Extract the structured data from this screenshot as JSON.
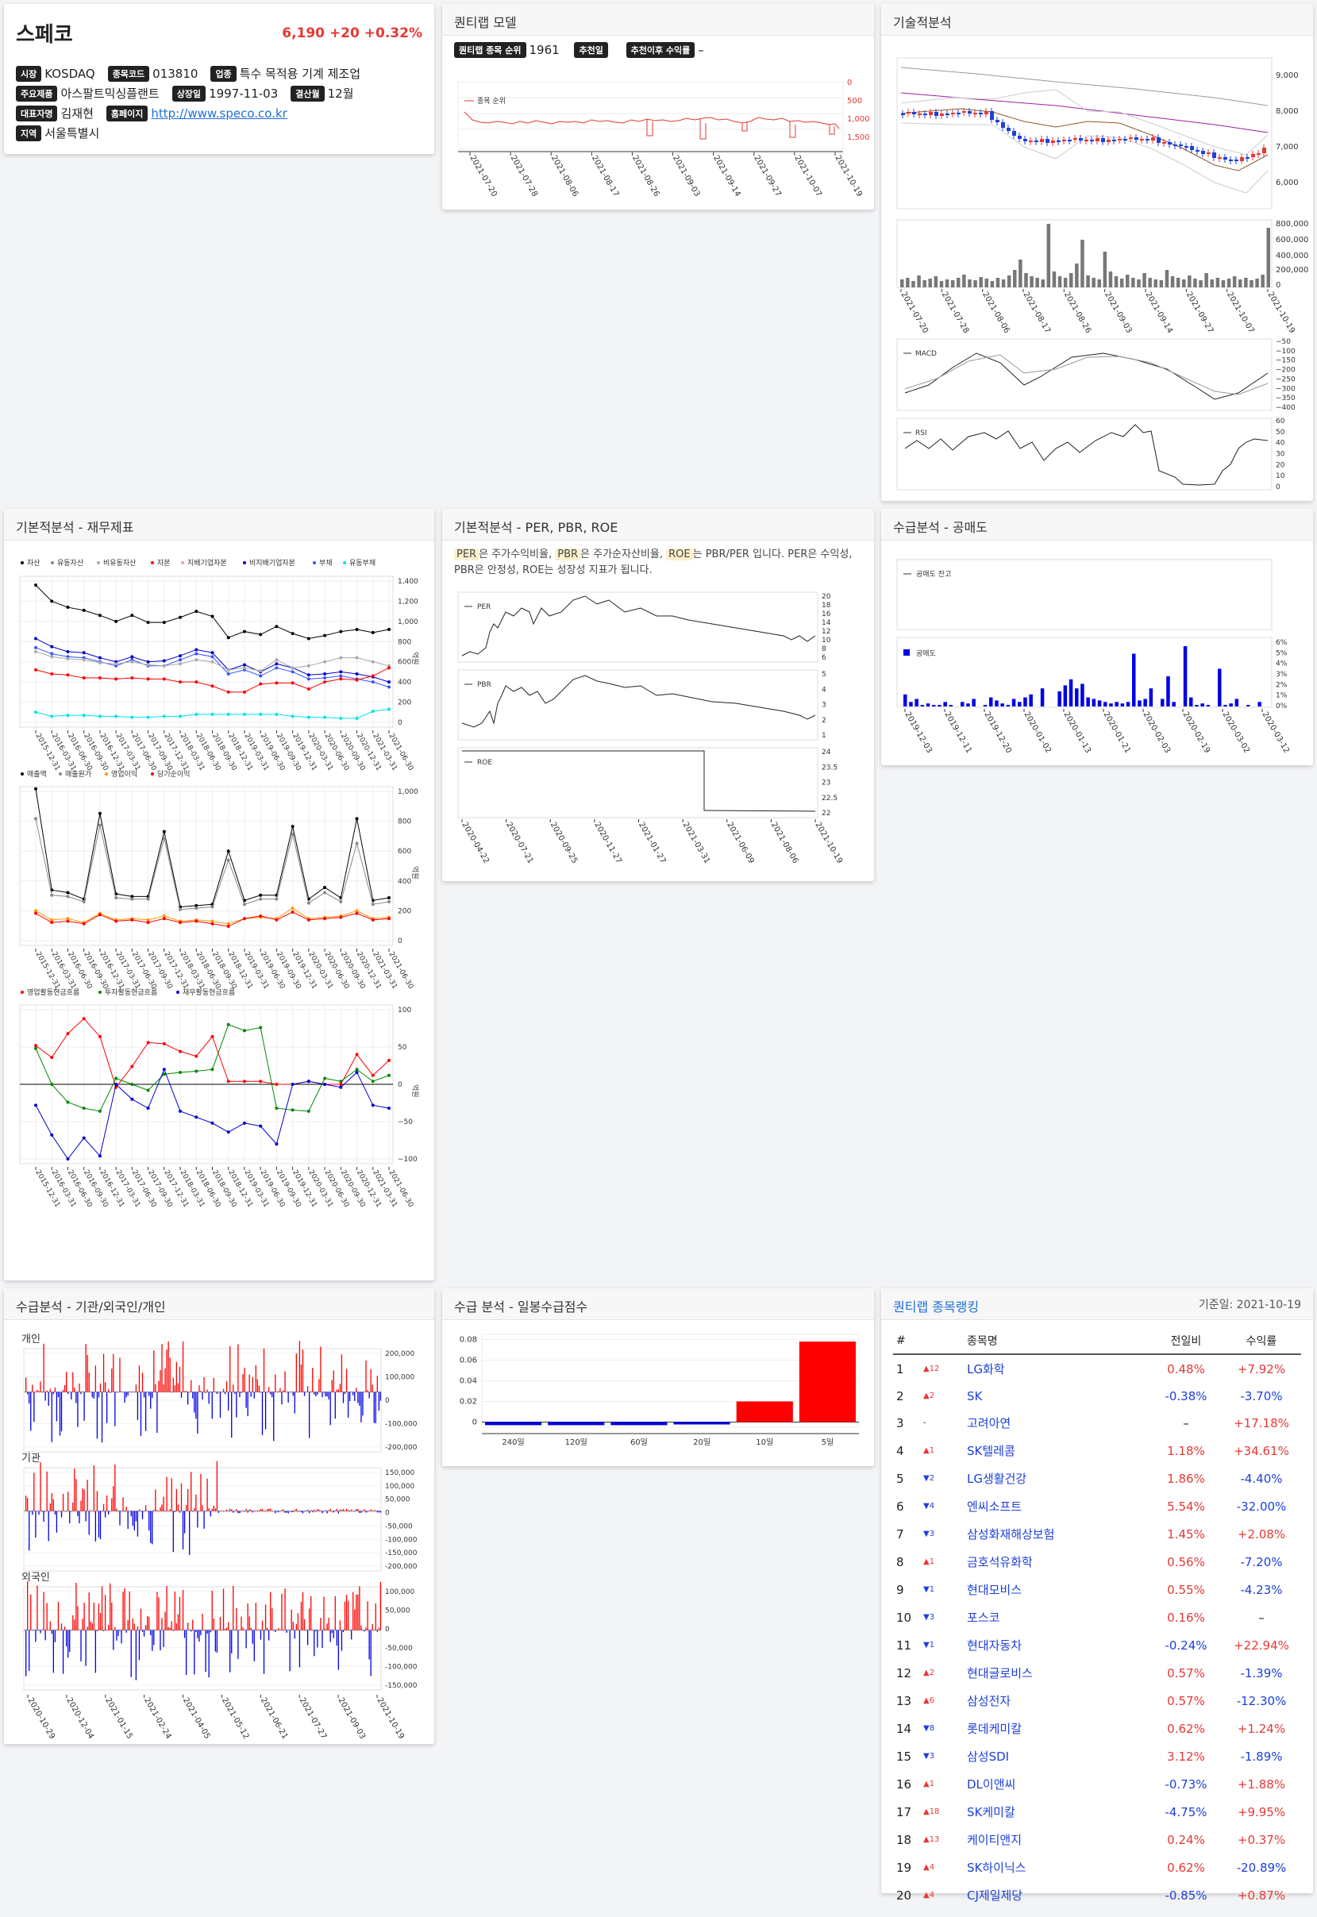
{
  "stock": {
    "name": "스페코",
    "price": "6,190",
    "change": "+20",
    "change_pct": "+0.32%",
    "market_label": "시장",
    "market": "KOSDAQ",
    "code_label": "종목코드",
    "code": "013810",
    "industry_label": "업종",
    "industry": "특수 목적용 기계 제조업",
    "products_label": "주요제품",
    "products": "아스팔트믹싱플랜트",
    "listed_label": "상장일",
    "listed": "1997-11-03",
    "fiscal_label": "결산월",
    "fiscal": "12월",
    "ceo_label": "대표자명",
    "ceo": "김재현",
    "homepage_label": "홈페이지",
    "homepage": "http://www.speco.co.kr",
    "region_label": "지역",
    "region": "서울특별시"
  },
  "quant": {
    "title": "퀀티랩 모델",
    "rank_label": "퀀티랩 종목 순위",
    "rank": "1961",
    "rec_label": "추천일",
    "rec": "",
    "ret_label": "추천이후 수익률",
    "ret": "–",
    "legend": "종목 순위",
    "yticks": [
      "0",
      "500",
      "1,000",
      "1,500"
    ],
    "dates": [
      "2021-07-20",
      "2021-07-28",
      "2021-08-06",
      "2021-08-17",
      "2021-08-26",
      "2021-09-03",
      "2021-09-14",
      "2021-09-27",
      "2021-10-07",
      "2021-10-19"
    ]
  },
  "tech": {
    "title": "기술적분석",
    "price_ticks": [
      "9,000",
      "8,000",
      "7,000",
      "6,000"
    ],
    "vol_ticks": [
      "800,000",
      "600,000",
      "400,000",
      "200,000",
      "0"
    ],
    "macd_label": "MACD",
    "macd_ticks": [
      "−50",
      "−100",
      "−150",
      "−200",
      "−250",
      "−300",
      "−350",
      "−400"
    ],
    "rsi_label": "RSI",
    "rsi_ticks": [
      "60",
      "50",
      "40",
      "30",
      "20",
      "10",
      "0"
    ],
    "dates": [
      "2021-07-20",
      "2021-07-28",
      "2021-08-06",
      "2021-08-17",
      "2021-08-26",
      "2021-09-03",
      "2021-09-14",
      "2021-09-27",
      "2021-10-07",
      "2021-10-19"
    ]
  },
  "fund": {
    "title": "기본적분석 - 재무제표",
    "legend1": [
      "자산",
      "유동자산",
      "비유동자산",
      "자본",
      "지배기업자본",
      "비지배기업자본",
      "부채",
      "유동부채"
    ],
    "legend1_colors": [
      "#000000",
      "#888888",
      "#aaaaaa",
      "#ff0000",
      "#ff9999",
      "#0000cc",
      "#3355ff",
      "#00e5e5"
    ],
    "ticks1": [
      "1,400",
      "1,200",
      "1,000",
      "800",
      "600",
      "400",
      "200",
      "0"
    ],
    "legend2": [
      "매출액",
      "매출원가",
      "영업이익",
      "당기순이익"
    ],
    "legend2_colors": [
      "#000000",
      "#888888",
      "#ff9900",
      "#ff0000"
    ],
    "ticks2": [
      "1,000",
      "800",
      "600",
      "400",
      "200",
      "0"
    ],
    "legend3": [
      "영업활동현금흐름",
      "투자활동현금흐름",
      "재무활동현금흐름"
    ],
    "legend3_colors": [
      "#ff0000",
      "#008800",
      "#0000cc"
    ],
    "ticks3": [
      "100",
      "50",
      "0",
      "−50",
      "−100"
    ],
    "unit": "억원",
    "dates": [
      "2015-12-31",
      "2016-03-31",
      "2016-06-30",
      "2016-09-30",
      "2016-12-31",
      "2017-03-31",
      "2017-06-30",
      "2017-09-30",
      "2017-12-31",
      "2018-03-31",
      "2018-06-30",
      "2018-09-30",
      "2018-12-31",
      "2019-03-31",
      "2019-06-30",
      "2019-09-30",
      "2019-12-31",
      "2020-03-31",
      "2020-06-30",
      "2020-09-30",
      "2020-12-31",
      "2021-03-31",
      "2021-06-30"
    ]
  },
  "per": {
    "title": "기본적분석 - PER, PBR, ROE",
    "desc_a": "PER",
    "desc_b": "은 주가수익비율,",
    "desc_c": "PBR",
    "desc_d": "은 주가순자산비율,",
    "desc_e": "ROE",
    "desc_f": "는 PBR/PER 입니다. PER은 수익성, PBR은 안정성, ROE는 성장성 지표가 됩니다.",
    "per_label": "PER",
    "per_ticks": [
      "20",
      "18",
      "16",
      "14",
      "12",
      "10",
      "8",
      "6"
    ],
    "pbr_label": "PBR",
    "pbr_ticks": [
      "5",
      "4",
      "3",
      "2",
      "1"
    ],
    "roe_label": "ROE",
    "roe_ticks": [
      "24",
      "23.5",
      "23",
      "22.5",
      "22"
    ],
    "dates": [
      "2020-04-22",
      "2020-07-21",
      "2020-09-25",
      "2020-11-27",
      "2021-01-27",
      "2021-03-31",
      "2021-06-09",
      "2021-08-06",
      "2021-10-19"
    ]
  },
  "short": {
    "title": "수급분석 - 공매도",
    "bal_label": "공매도 잔고",
    "vol_label": "공매도",
    "ticks": [
      "6%",
      "5%",
      "4%",
      "3%",
      "2%",
      "1%",
      "0%"
    ],
    "dates": [
      "2019-12-03",
      "2019-12-11",
      "2019-12-20",
      "2020-01-02",
      "2020-01-13",
      "2020-01-21",
      "2020-02-03",
      "2020-02-19",
      "2020-03-02",
      "2020-03-12"
    ]
  },
  "flow": {
    "title": "수급분석 - 기관/외국인/개인",
    "ind_label": "개인",
    "ind_ticks": [
      "200,000",
      "100,000",
      "0",
      "-100,000",
      "-200,000"
    ],
    "inst_label": "기관",
    "inst_ticks": [
      "150,000",
      "100,000",
      "50,000",
      "0",
      "-50,000",
      "-100,000",
      "-150,000",
      "-200,000"
    ],
    "for_label": "외국인",
    "for_ticks": [
      "100,000",
      "50,000",
      "0",
      "-50,000",
      "-100,000",
      "-150,000"
    ],
    "dates": [
      "2020-10-29",
      "2020-12-04",
      "2021-01-15",
      "2021-02-24",
      "2021-04-05",
      "2021-05-12",
      "2021-06-21",
      "2021-07-27",
      "2021-09-03",
      "2021-10-19"
    ]
  },
  "score": {
    "title": "수급 분석 - 일봉수급점수",
    "ticks": [
      "0.08",
      "0.06",
      "0.04",
      "0.02",
      "0"
    ]
  },
  "ranking": {
    "title": "퀀티랩 종목랭킹",
    "date_label": "기준일: 2021-10-19",
    "headers": [
      "#",
      "종목명",
      "전일비",
      "수익률"
    ],
    "rows": [
      {
        "n": "1",
        "mv": "▲12",
        "d": "up",
        "name": "LG화학",
        "chg": "0.48%",
        "c": "up",
        "ret": "+7.92%",
        "r": "up"
      },
      {
        "n": "2",
        "mv": "▲2",
        "d": "up",
        "name": "SK",
        "chg": "-0.38%",
        "c": "dn",
        "ret": "-3.70%",
        "r": "dn"
      },
      {
        "n": "3",
        "mv": "-",
        "d": "",
        "name": "고려아연",
        "chg": "–",
        "c": "",
        "ret": "+17.18%",
        "r": "up"
      },
      {
        "n": "4",
        "mv": "▲1",
        "d": "up",
        "name": "SK텔레콤",
        "chg": "1.18%",
        "c": "up",
        "ret": "+34.61%",
        "r": "up"
      },
      {
        "n": "5",
        "mv": "▼2",
        "d": "dn",
        "name": "LG생활건강",
        "chg": "1.86%",
        "c": "up",
        "ret": "-4.40%",
        "r": "dn"
      },
      {
        "n": "6",
        "mv": "▼4",
        "d": "dn",
        "name": "엔씨소프트",
        "chg": "5.54%",
        "c": "up",
        "ret": "-32.00%",
        "r": "dn"
      },
      {
        "n": "7",
        "mv": "▼3",
        "d": "dn",
        "name": "삼성화재해상보험",
        "chg": "1.45%",
        "c": "up",
        "ret": "+2.08%",
        "r": "up"
      },
      {
        "n": "8",
        "mv": "▲1",
        "d": "up",
        "name": "금호석유화학",
        "chg": "0.56%",
        "c": "up",
        "ret": "-7.20%",
        "r": "dn"
      },
      {
        "n": "9",
        "mv": "▼1",
        "d": "dn",
        "name": "현대모비스",
        "chg": "0.55%",
        "c": "up",
        "ret": "-4.23%",
        "r": "dn"
      },
      {
        "n": "10",
        "mv": "▼3",
        "d": "dn",
        "name": "포스코",
        "chg": "0.16%",
        "c": "up",
        "ret": "–",
        "r": ""
      },
      {
        "n": "11",
        "mv": "▼1",
        "d": "dn",
        "name": "현대자동차",
        "chg": "-0.24%",
        "c": "dn",
        "ret": "+22.94%",
        "r": "up"
      },
      {
        "n": "12",
        "mv": "▲2",
        "d": "up",
        "name": "현대글로비스",
        "chg": "0.57%",
        "c": "up",
        "ret": "-1.39%",
        "r": "dn"
      },
      {
        "n": "13",
        "mv": "▲6",
        "d": "up",
        "name": "삼성전자",
        "chg": "0.57%",
        "c": "up",
        "ret": "-12.30%",
        "r": "dn"
      },
      {
        "n": "14",
        "mv": "▼8",
        "d": "dn",
        "name": "롯데케미칼",
        "chg": "0.62%",
        "c": "up",
        "ret": "+1.24%",
        "r": "up"
      },
      {
        "n": "15",
        "mv": "▼3",
        "d": "dn",
        "name": "삼성SDI",
        "chg": "3.12%",
        "c": "up",
        "ret": "-1.89%",
        "r": "dn"
      },
      {
        "n": "16",
        "mv": "▲1",
        "d": "up",
        "name": "DL이앤씨",
        "chg": "-0.73%",
        "c": "dn",
        "ret": "+1.88%",
        "r": "up"
      },
      {
        "n": "17",
        "mv": "▲18",
        "d": "up",
        "name": "SK케미칼",
        "chg": "-4.75%",
        "c": "dn",
        "ret": "+9.95%",
        "r": "up"
      },
      {
        "n": "18",
        "mv": "▲13",
        "d": "up",
        "name": "케이티앤지",
        "chg": "0.24%",
        "c": "up",
        "ret": "+0.37%",
        "r": "up"
      },
      {
        "n": "19",
        "mv": "▲4",
        "d": "up",
        "name": "SK하이닉스",
        "chg": "0.62%",
        "c": "up",
        "ret": "-20.89%",
        "r": "dn"
      },
      {
        "n": "20",
        "mv": "▲4",
        "d": "up",
        "name": "CJ제일제당",
        "chg": "-0.85%",
        "c": "dn",
        "ret": "+0.87%",
        "r": "up"
      }
    ]
  },
  "chart_data": [
    {
      "type": "bar",
      "title": "수급 분석 - 일봉수급점수",
      "categories": [
        "240일",
        "120일",
        "60일",
        "20일",
        "10일",
        "5일"
      ],
      "values": [
        -0.003,
        -0.003,
        -0.003,
        -0.002,
        0.02,
        0.078
      ],
      "ylim": [
        -0.005,
        0.085
      ]
    }
  ]
}
